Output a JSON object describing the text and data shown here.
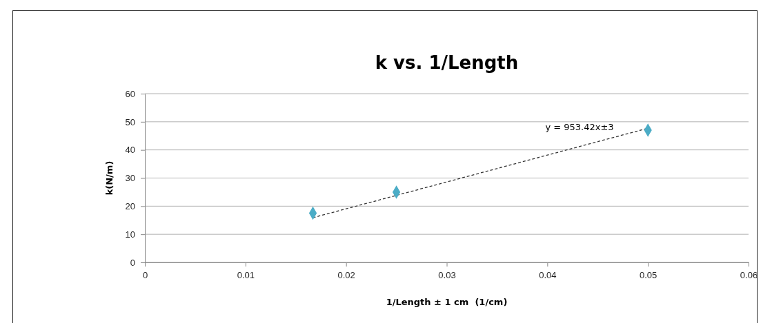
{
  "chart_data": {
    "type": "scatter",
    "title": "k vs. 1/Length",
    "xlabel": "1/Length ± 1 cm  (1/cm)",
    "ylabel": "k(N/m)",
    "xlim": [
      0,
      0.06
    ],
    "xticks": [
      0,
      0.01,
      0.02,
      0.03,
      0.04,
      0.05,
      0.06
    ],
    "ylim": [
      0,
      60
    ],
    "yticks": [
      0,
      10,
      20,
      30,
      40,
      50,
      60
    ],
    "grid": "y",
    "series": [
      {
        "type": "line",
        "color": "#333333",
        "line_style": "dashed",
        "marker": "none",
        "x": [
          0.0167,
          0.05
        ],
        "values": [
          15.9,
          47.7
        ]
      },
      {
        "color": "#4bacc6",
        "marker": "diamond",
        "x": [
          0.0167,
          0.025,
          0.05
        ],
        "values": [
          17.5,
          25,
          47
        ]
      }
    ],
    "annotations": [
      "y = 953.42x±3"
    ]
  }
}
